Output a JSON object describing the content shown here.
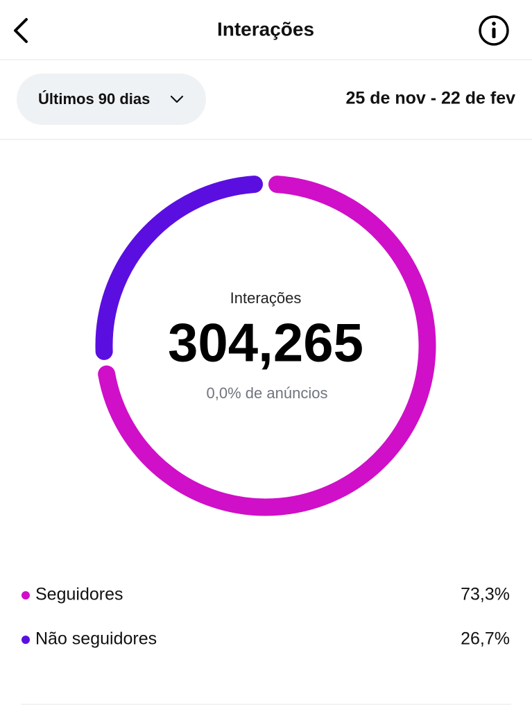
{
  "header": {
    "title": "Interações"
  },
  "filter": {
    "label": "Últimos 90 dias",
    "date_range": "25 de nov - 22 de fev"
  },
  "chart_data": {
    "type": "donut",
    "center_label": "Interações",
    "total": "304,265",
    "subtitle": "0,0% de anúncios",
    "categories": [
      "Seguidores",
      "Não seguidores"
    ],
    "values": [
      73.3,
      26.7
    ],
    "value_labels": [
      "73,3%",
      "26,7%"
    ],
    "colors": [
      "#d00fc8",
      "#5a0fe0"
    ]
  }
}
